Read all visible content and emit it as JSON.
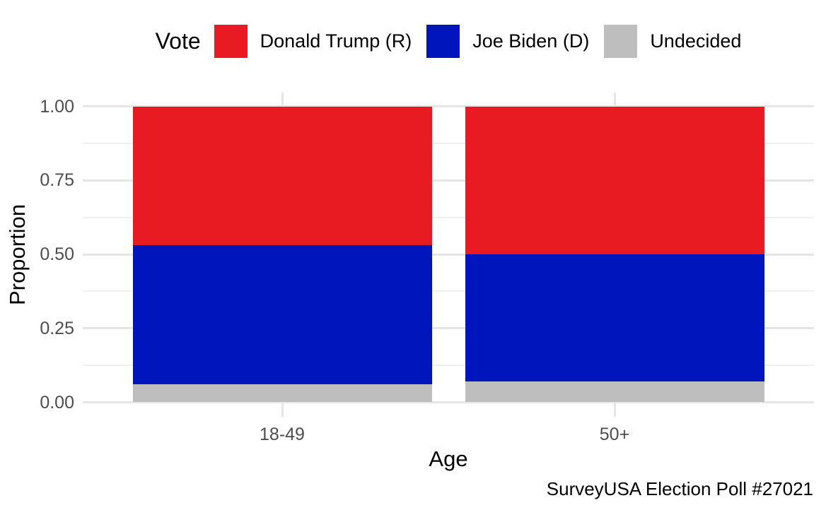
{
  "chart_data": {
    "type": "bar",
    "subtype": "stacked-proportion-100",
    "orientation": "vertical",
    "title": "",
    "xlabel": "Age",
    "ylabel": "Proportion",
    "caption": "SurveyUSA Election Poll #27021",
    "legend_title": "Vote",
    "legend_position": "top",
    "grid": true,
    "background_color": "#ffffff",
    "gridline_color": "#e6e6e6",
    "tick_label_color": "#4d4d4d",
    "categories": [
      "18-49",
      "50+"
    ],
    "series": [
      {
        "name": "Donald Trump (R)",
        "color": "#e81b23",
        "values": [
          0.47,
          0.5
        ]
      },
      {
        "name": "Joe Biden (D)",
        "color": "#0015bc",
        "values": [
          0.47,
          0.43
        ]
      },
      {
        "name": "Undecided",
        "color": "#bebebe",
        "values": [
          0.06,
          0.07
        ]
      }
    ],
    "stack_order_note": "series listed top-to-bottom within each bar",
    "ylim": [
      0,
      1
    ],
    "y_ticks": [
      {
        "label": "1.00",
        "value": 1.0
      },
      {
        "label": "0.75",
        "value": 0.75
      },
      {
        "label": "0.50",
        "value": 0.5
      },
      {
        "label": "0.25",
        "value": 0.25
      },
      {
        "label": "0.00",
        "value": 0.0
      }
    ]
  }
}
